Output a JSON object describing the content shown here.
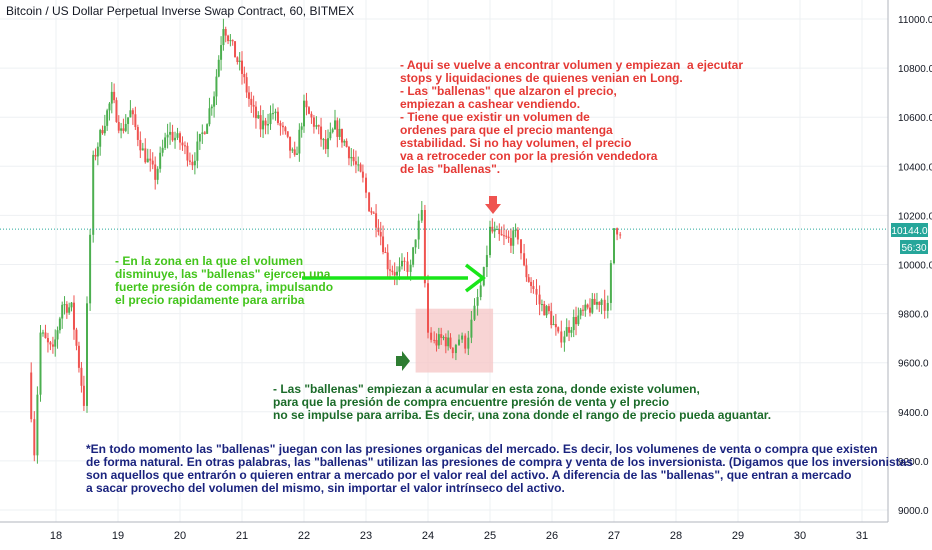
{
  "title": "Bitcoin / US Dollar Perpetual Inverse Swap Contract, 60, BITMEX",
  "price_badge": {
    "value": "10144.0",
    "countdown": "56:30",
    "color": "#26a69a"
  },
  "colors": {
    "up": "#4caf50",
    "down": "#ef5350",
    "grid": "#eef0f3",
    "axis_text": "#131722",
    "zone": "#f5c6c6"
  },
  "annotations": {
    "red": "- Aqui se vuelve a encontrar volumen y empiezan  a ejecutar\nstops y liquidaciones de quienes venian en Long.\n- Las \"ballenas\" que alzaron el precio,\nempiezan a cashear vendiendo.\n- Tiene que existir un volumen de\nordenes para que el precio mantenga\nestabilidad. Si no hay volumen, el precio\nva a retroceder con por la presión vendedora\nde las \"ballenas\".",
    "green": "- En la zona en la que el volumen\ndisminuye, las \"ballenas\" ejercen una\nfuerte presión de compra, impulsando\nel precio rapidamente para arriba",
    "darkgreen": "- Las \"ballenas\" empiezan a acumular en esta zona, donde existe volumen,\npara que la presión de compra encuentre presión de venta y el precio\nno se impulse para arriba. Es decir, una zona donde el rango de precio pueda aguantar.",
    "navy": "*En todo momento las \"ballenas\" juegan con las presiones organicas del mercado. Es decir, los volumenes de venta o compra que existen\nde forma natural. En otras palabras, las \"ballenas\" utilizan las presiones de compra y venta de los inversionista. (Digamos que los inversionistas\nson aquellos que entrarón o quieren entrar a mercado por el valor real del activo. A diferencia de las \"ballenas\", que entran a mercado\na sacar provecho del volumen del mismo, sin importar el valor intrínseco del activo."
  },
  "chart_data": {
    "type": "candlestick",
    "x_ticks": [
      "18",
      "19",
      "20",
      "21",
      "22",
      "23",
      "24",
      "25",
      "26",
      "27",
      "28",
      "29",
      "30",
      "31"
    ],
    "y_ticks": [
      9000.0,
      9200.0,
      9400.0,
      9600.0,
      9800.0,
      10000.0,
      10200.0,
      10400.0,
      10600.0,
      10800.0,
      11000.0
    ],
    "ylim": [
      8960,
      11080
    ],
    "last_price": 10144.0,
    "zone": {
      "x_start": 23.8,
      "x_end": 25.05,
      "price_low": 9560,
      "price_high": 9820
    },
    "key_points": [
      [
        17.55,
        9560
      ],
      [
        17.65,
        9240
      ],
      [
        17.75,
        9720
      ],
      [
        17.95,
        9640
      ],
      [
        18.1,
        9840
      ],
      [
        18.25,
        9820
      ],
      [
        18.45,
        9440
      ],
      [
        18.5,
        9820
      ],
      [
        18.6,
        10420
      ],
      [
        18.75,
        10560
      ],
      [
        18.9,
        10680
      ],
      [
        19.05,
        10540
      ],
      [
        19.2,
        10620
      ],
      [
        19.4,
        10460
      ],
      [
        19.6,
        10360
      ],
      [
        19.8,
        10540
      ],
      [
        20.0,
        10500
      ],
      [
        20.2,
        10420
      ],
      [
        20.4,
        10560
      ],
      [
        20.55,
        10700
      ],
      [
        20.7,
        10980
      ],
      [
        20.85,
        10880
      ],
      [
        21.0,
        10780
      ],
      [
        21.15,
        10640
      ],
      [
        21.3,
        10560
      ],
      [
        21.5,
        10620
      ],
      [
        21.7,
        10520
      ],
      [
        21.85,
        10420
      ],
      [
        22.0,
        10640
      ],
      [
        22.2,
        10560
      ],
      [
        22.35,
        10470
      ],
      [
        22.5,
        10560
      ],
      [
        22.65,
        10500
      ],
      [
        22.8,
        10420
      ],
      [
        22.95,
        10340
      ],
      [
        23.05,
        10240
      ],
      [
        23.2,
        10160
      ],
      [
        23.35,
        10000
      ],
      [
        23.5,
        9960
      ],
      [
        23.62,
        10000
      ],
      [
        23.72,
        9980
      ],
      [
        23.8,
        10120
      ],
      [
        23.9,
        10200
      ],
      [
        23.95,
        9920
      ],
      [
        24.0,
        9720
      ],
      [
        24.1,
        9680
      ],
      [
        24.25,
        9700
      ],
      [
        24.4,
        9660
      ],
      [
        24.5,
        9700
      ],
      [
        24.6,
        9680
      ],
      [
        24.7,
        9760
      ],
      [
        24.8,
        9860
      ],
      [
        24.9,
        9960
      ],
      [
        25.0,
        10140
      ],
      [
        25.15,
        10110
      ],
      [
        25.3,
        10100
      ],
      [
        25.45,
        10120
      ],
      [
        25.55,
        9980
      ],
      [
        25.7,
        9900
      ],
      [
        25.8,
        9840
      ],
      [
        25.95,
        9800
      ],
      [
        26.1,
        9700
      ],
      [
        26.2,
        9720
      ],
      [
        26.35,
        9770
      ],
      [
        26.5,
        9800
      ],
      [
        26.65,
        9830
      ],
      [
        26.8,
        9860
      ],
      [
        26.9,
        9820
      ],
      [
        27.0,
        10150
      ],
      [
        27.1,
        10144
      ]
    ]
  }
}
